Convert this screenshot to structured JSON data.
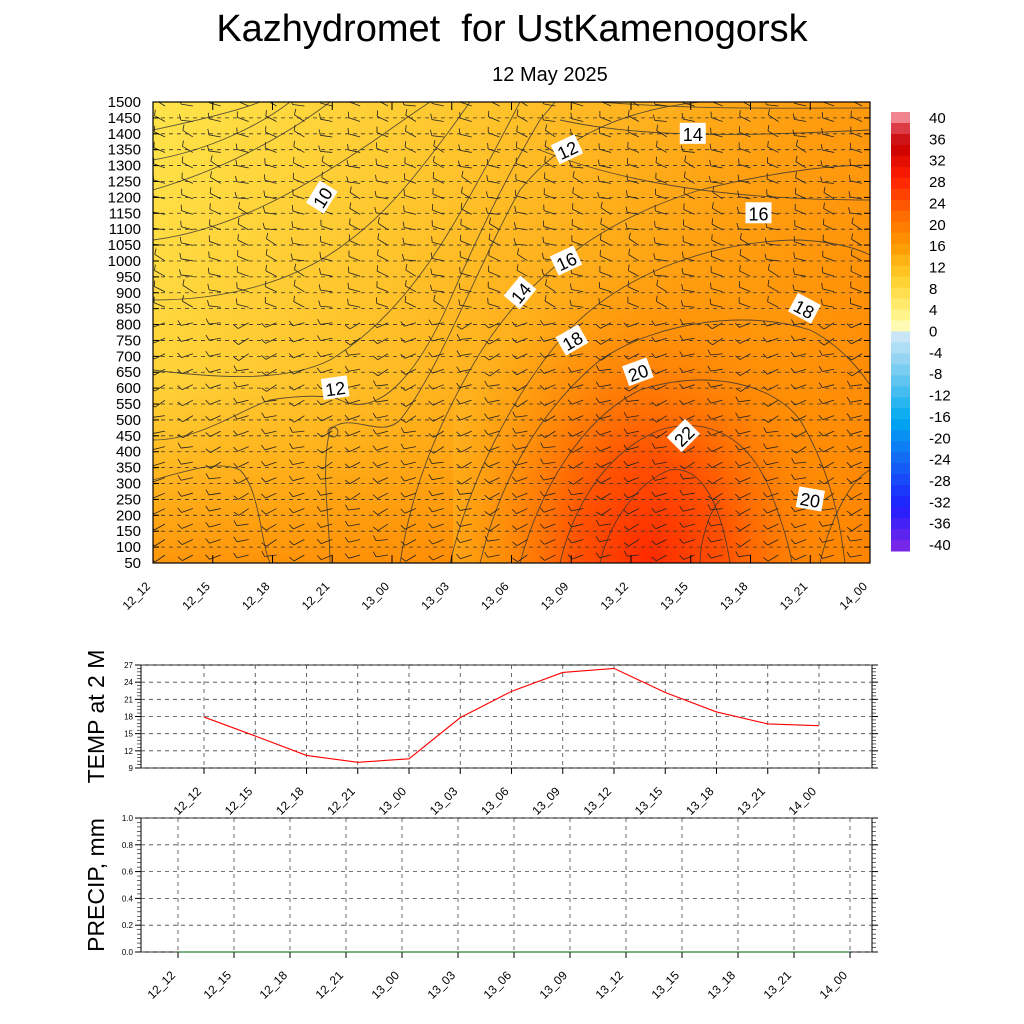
{
  "header": {
    "title": "Kazhydromet  for UstKamenogorsk",
    "subtitle": "12 May 2025"
  },
  "chart_data": [
    {
      "type": "heatmap",
      "name": "cross-section",
      "title": "Kazhydromet  for UstKamenogorsk",
      "subtitle": "12 May 2025",
      "x": [
        "12_12",
        "12_15",
        "12_18",
        "12_21",
        "13_00",
        "13_03",
        "13_06",
        "13_09",
        "13_12",
        "13_15",
        "13_18",
        "13_21",
        "14_00"
      ],
      "y_ticks": [
        50,
        100,
        150,
        200,
        250,
        300,
        350,
        400,
        450,
        500,
        550,
        600,
        650,
        700,
        750,
        800,
        850,
        900,
        950,
        1000,
        1050,
        1100,
        1150,
        1200,
        1250,
        1300,
        1350,
        1400,
        1450,
        1500
      ],
      "ylim": [
        50,
        1500
      ],
      "colorbar": {
        "labels": [
          40,
          36,
          32,
          28,
          24,
          20,
          16,
          12,
          8,
          4,
          0,
          -4,
          -8,
          -12,
          -16,
          -20,
          -24,
          -28,
          -32,
          -36,
          -40
        ],
        "range": [
          -40,
          40
        ]
      },
      "contour_labels": [
        {
          "text": "10",
          "x": "12_21",
          "y": 1200
        },
        {
          "text": "12",
          "x": "12_21",
          "y": 600
        },
        {
          "text": "12",
          "x": "13_09",
          "y": 1350
        },
        {
          "text": "14",
          "x": "13_06",
          "y": 900
        },
        {
          "text": "14",
          "x": "13_15",
          "y": 1400
        },
        {
          "text": "16",
          "x": "13_09",
          "y": 1000
        },
        {
          "text": "16",
          "x": "13_18",
          "y": 1150
        },
        {
          "text": "18",
          "x": "13_09",
          "y": 750
        },
        {
          "text": "18",
          "x": "13_21",
          "y": 850
        },
        {
          "text": "20",
          "x": "13_12",
          "y": 650
        },
        {
          "text": "20",
          "x": "13_21",
          "y": 250
        },
        {
          "text": "22",
          "x": "13_15",
          "y": 450
        }
      ]
    },
    {
      "type": "line",
      "name": "temperature",
      "ylabel": "TEMP at 2 M",
      "x": [
        "12_12",
        "12_15",
        "12_18",
        "12_21",
        "13_00",
        "13_03",
        "13_06",
        "13_09",
        "13_12",
        "13_15",
        "13_18",
        "13_21",
        "14_00"
      ],
      "y_ticks": [
        9,
        12,
        15,
        18,
        21,
        24,
        27
      ],
      "ylim": [
        9,
        27
      ],
      "series": [
        {
          "values": [
            17.9,
            14.6,
            11.2,
            10.0,
            10.6,
            17.8,
            22.4,
            25.7,
            26.4,
            22.2,
            18.8,
            16.7,
            16.4
          ],
          "color": "#ff0000"
        }
      ],
      "grid": true
    },
    {
      "type": "line",
      "name": "precipitation",
      "ylabel": "PRECIP, mm",
      "x": [
        "12_12",
        "12_15",
        "12_18",
        "12_21",
        "13_00",
        "13_03",
        "13_06",
        "13_09",
        "13_12",
        "13_15",
        "13_18",
        "13_21",
        "14_00"
      ],
      "y_ticks": [
        "0.0",
        "0.2",
        "0.4",
        "0.6",
        "0.8",
        "1.0"
      ],
      "ylim": [
        0,
        1.0
      ],
      "series": [
        {
          "values": [
            0,
            0,
            0,
            0,
            0,
            0,
            0,
            0,
            0,
            0,
            0,
            0,
            0
          ],
          "color": "#006600"
        }
      ],
      "grid": true
    }
  ]
}
